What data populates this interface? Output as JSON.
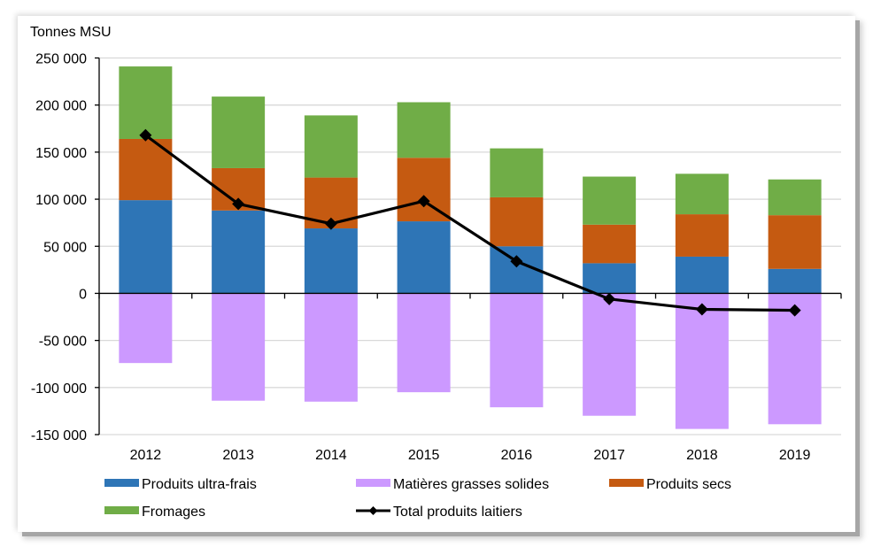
{
  "chart_data": {
    "type": "bar",
    "stacked": true,
    "title": "",
    "ylabel": "Tonnes MSU",
    "xlabel": "",
    "ylim": [
      -150000,
      250000
    ],
    "ytick_step": 50000,
    "yticks": [
      "250 000",
      "200 000",
      "150 000",
      "100 000",
      "50 000",
      "0",
      "-50 000",
      "-100 000",
      "-150 000"
    ],
    "ytick_values": [
      250000,
      200000,
      150000,
      100000,
      50000,
      0,
      -50000,
      -100000,
      -150000
    ],
    "grid": true,
    "legend_position": "bottom",
    "categories": [
      "2012",
      "2013",
      "2014",
      "2015",
      "2016",
      "2017",
      "2018",
      "2019"
    ],
    "series": [
      {
        "name": "Produits ultra-frais",
        "kind": "bar",
        "color": "#2e75b6",
        "values": [
          99000,
          88000,
          69000,
          76500,
          50000,
          32000,
          39000,
          26000
        ]
      },
      {
        "name": "Matières grasses solides",
        "kind": "bar",
        "color": "#cc99ff",
        "values": [
          -74000,
          -114000,
          -115000,
          -105000,
          -121000,
          -130000,
          -144000,
          -139000
        ]
      },
      {
        "name": "Produits secs",
        "kind": "bar",
        "color": "#c55a11",
        "values": [
          65000,
          45000,
          54000,
          67500,
          52000,
          41000,
          45000,
          57000
        ]
      },
      {
        "name": "Fromages",
        "kind": "bar",
        "color": "#70ad47",
        "values": [
          77000,
          76000,
          66000,
          59000,
          52000,
          51000,
          43000,
          38000
        ]
      },
      {
        "name": "Total produits laitiers",
        "kind": "line",
        "color": "#000000",
        "marker": "diamond",
        "values": [
          168000,
          95000,
          74000,
          98000,
          34000,
          -6000,
          -17000,
          -18000
        ]
      }
    ]
  }
}
